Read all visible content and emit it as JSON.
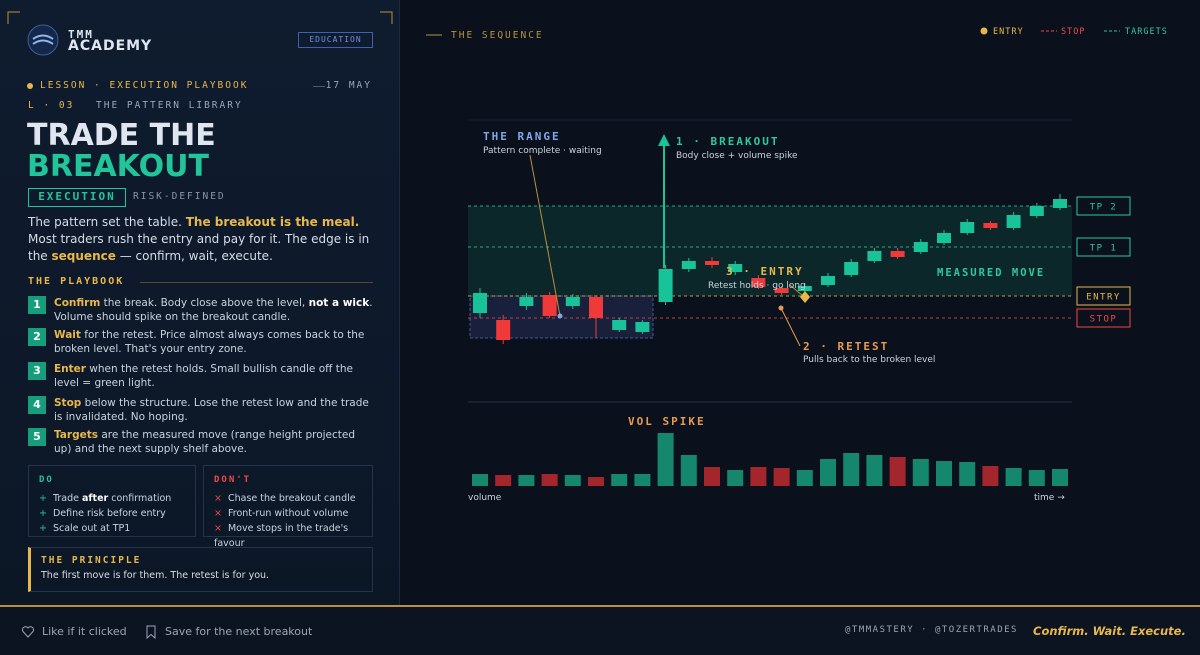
{
  "header": {
    "brand_top": "TMM",
    "brand": "ACADEMY",
    "badge": "EDUCATION"
  },
  "lesson": {
    "kicker": "LESSON · EXECUTION PLAYBOOK",
    "date": "17 MAY",
    "number": "L · 03",
    "library": "THE PATTERN LIBRARY"
  },
  "title": {
    "line1": "TRADE THE",
    "line2": "BREAKOUT"
  },
  "tags": {
    "primary": "EXECUTION",
    "secondary": "RISK-DEFINED"
  },
  "intro": [
    "The pattern set the table. ",
    "The breakout is the meal.",
    " Most traders rush the entry and pay for it. The edge is in the ",
    "sequence",
    " — confirm, wait, execute."
  ],
  "playbook": {
    "heading": "THE PLAYBOOK",
    "steps": [
      {
        "num": "1",
        "parts": [
          "Confirm",
          " the break. Body close above the level, ",
          "not a wick",
          ". Volume should spike on the breakout candle."
        ]
      },
      {
        "num": "2",
        "parts": [
          "Wait",
          " for the retest. Price almost always comes back to the broken level. That's your entry zone."
        ]
      },
      {
        "num": "3",
        "parts": [
          "Enter",
          " when the retest holds. Small bullish candle off the level = green light."
        ]
      },
      {
        "num": "4",
        "parts": [
          "Stop",
          " below the structure. Lose the retest low and the trade is invalidated. No hoping."
        ]
      },
      {
        "num": "5",
        "parts": [
          "Targets",
          " are the measured move (range height projected up) and the next supply shelf above."
        ]
      }
    ]
  },
  "do": {
    "heading": "DO",
    "items": [
      [
        "Trade ",
        "after",
        " confirmation"
      ],
      [
        "Define risk before entry"
      ],
      [
        "Scale out at TP1"
      ]
    ]
  },
  "dont": {
    "heading": "DON'T",
    "items": [
      [
        "Chase the breakout candle"
      ],
      [
        "Front-run without volume"
      ],
      [
        "Move stops in the trade's favour"
      ]
    ]
  },
  "principle": {
    "heading": "THE PRINCIPLE",
    "text": "The first move is for them. The retest is for you."
  },
  "footer": {
    "like": "Like if it clicked",
    "save": "Save for the next breakout",
    "handles": "@TMMASTERY · @TOZERTRADES",
    "tagline": "Confirm. Wait. Execute."
  },
  "chart": {
    "section": "THE SEQUENCE",
    "legend": {
      "entry": "ENTRY",
      "stop": "STOP",
      "targets": "TARGETS"
    },
    "range_title": "THE RANGE",
    "range_sub": "Pattern complete · waiting",
    "breakout_title": "1 · BREAKOUT",
    "breakout_sub": "Body close + volume spike",
    "entry_title": "3 · ENTRY",
    "entry_sub": "Retest holds · go long",
    "retest_title": "2 · RETEST",
    "retest_sub": "Pulls back to the broken level",
    "measured": "MEASURED MOVE",
    "vol_title": "VOL SPIKE",
    "vol_axis": "volume",
    "time_axis": "time →",
    "levels": [
      {
        "label": "TP 2",
        "price": 194,
        "color": "#2fc79b"
      },
      {
        "label": "TP 1",
        "price": 153,
        "color": "#2fc79b"
      },
      {
        "label": "ENTRY",
        "price": 104,
        "color": "#e8b84a"
      },
      {
        "label": "STOP",
        "price": 82,
        "color": "#f04848"
      }
    ],
    "candles": [
      [
        87,
        112,
        82,
        107
      ],
      [
        80,
        85,
        56,
        60
      ],
      [
        94,
        107,
        90,
        103
      ],
      [
        105,
        108,
        82,
        84
      ],
      [
        94,
        106,
        91,
        103
      ],
      [
        103,
        104,
        62,
        82
      ],
      [
        70,
        82,
        68,
        80
      ],
      [
        68,
        80,
        66,
        78
      ],
      [
        98,
        135,
        95,
        131
      ],
      [
        131,
        142,
        128,
        139
      ],
      [
        139,
        143,
        132,
        135
      ],
      [
        128,
        139,
        125,
        136
      ],
      [
        122,
        125,
        111,
        113
      ],
      [
        112,
        114,
        105,
        107
      ],
      [
        109,
        117,
        106,
        114
      ],
      [
        115,
        127,
        113,
        124
      ],
      [
        125,
        141,
        123,
        138
      ],
      [
        139,
        152,
        137,
        149
      ],
      [
        149,
        152,
        141,
        143
      ],
      [
        148,
        161,
        146,
        158
      ],
      [
        157,
        170,
        155,
        167
      ],
      [
        167,
        181,
        165,
        178
      ],
      [
        177,
        179,
        170,
        172
      ],
      [
        172,
        188,
        170,
        185
      ],
      [
        184,
        197,
        182,
        194
      ],
      [
        192,
        206,
        190,
        201
      ]
    ],
    "volume": [
      12,
      11,
      11,
      12,
      11,
      9,
      12,
      12,
      53,
      31,
      19,
      16,
      19,
      18,
      16,
      27,
      33,
      31,
      29,
      27,
      25,
      24,
      20,
      18,
      16,
      17
    ]
  }
}
